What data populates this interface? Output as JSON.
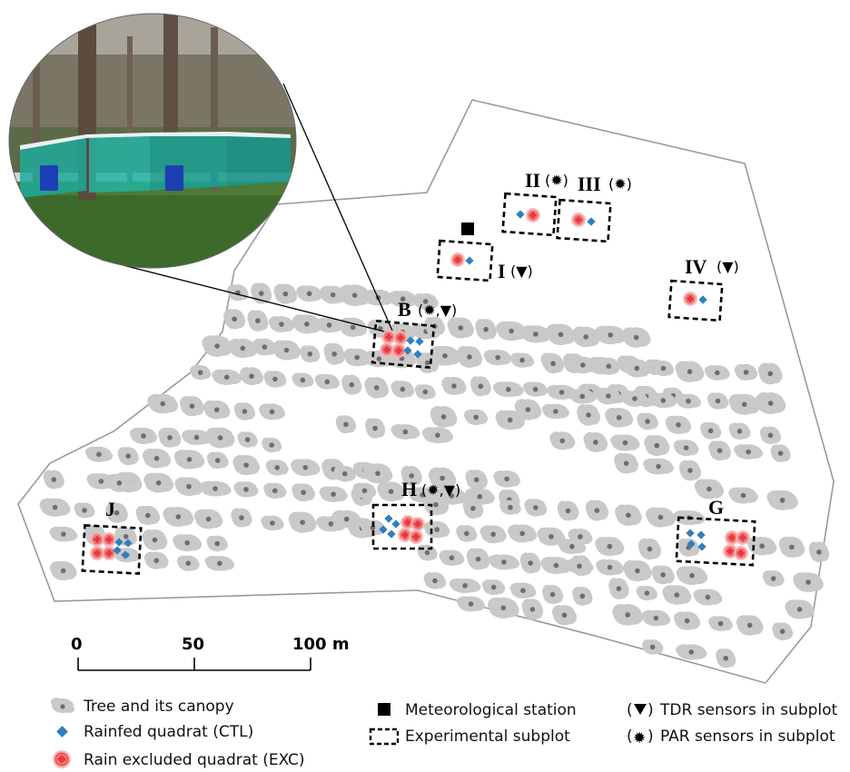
{
  "subplots": [
    {
      "id": "J",
      "label": "J",
      "sensors": ""
    },
    {
      "id": "H",
      "label": "H",
      "sensors": "(✹,▼)"
    },
    {
      "id": "G",
      "label": "G",
      "sensors": ""
    },
    {
      "id": "B",
      "label": "B",
      "sensors": "(✹,▼)"
    },
    {
      "id": "I",
      "label": "I",
      "sensors": "(▼)"
    },
    {
      "id": "II",
      "label": "II",
      "sensors": "(✹)"
    },
    {
      "id": "III",
      "label": "III",
      "sensors": "(✹)"
    },
    {
      "id": "IV",
      "label": "IV",
      "sensors": "(▼)"
    }
  ],
  "scale_bar": {
    "ticks": [
      "0",
      "50",
      "100 m"
    ]
  },
  "legend": {
    "tree": "Tree and its canopy",
    "ctl": "Rainfed quadrat (CTL)",
    "exc": "Rain excluded quadrat (EXC)",
    "met": "Meteorological station",
    "subplot": "Experimental subplot",
    "tdr": "TDR sensors in subplot",
    "par": "PAR sensors in subplot"
  },
  "colors": {
    "canopy": "#c9c9c9",
    "trunk": "#6e6e6e",
    "ctl": "#2f7fbf",
    "exc": "#e8393e",
    "boundary": "#9a9a9a"
  }
}
